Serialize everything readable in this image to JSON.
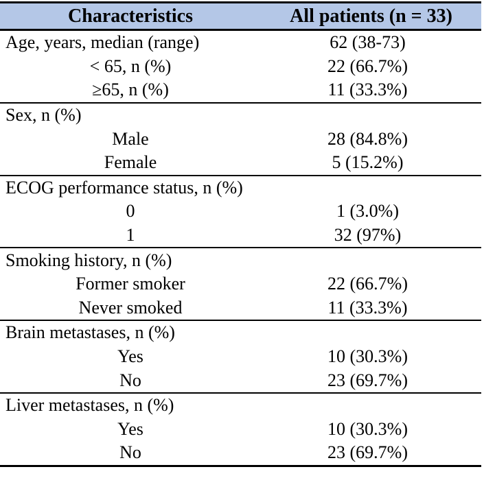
{
  "colors": {
    "header_bg": "#b4c7e7",
    "border": "#000000",
    "text": "#000000",
    "page_bg": "#ffffff"
  },
  "table": {
    "header": {
      "characteristics": "Characteristics",
      "all_patients": "All patients (n = 33)"
    },
    "sections": [
      {
        "rows": [
          {
            "label": "Age, years, median (range)",
            "value": "62 (38-73)",
            "indent": false
          },
          {
            "label": "< 65, n (%)",
            "value": "22 (66.7%)",
            "indent": true
          },
          {
            "label": "≥65, n (%)",
            "value": "11 (33.3%)",
            "indent": true
          }
        ]
      },
      {
        "rows": [
          {
            "label": "Sex, n (%)",
            "value": "",
            "indent": false
          },
          {
            "label": "Male",
            "value": "28 (84.8%)",
            "indent": true
          },
          {
            "label": "Female",
            "value": "5 (15.2%)",
            "indent": true
          }
        ]
      },
      {
        "rows": [
          {
            "label": "ECOG performance status, n (%)",
            "value": "",
            "indent": false
          },
          {
            "label": "0",
            "value": "1 (3.0%)",
            "indent": true
          },
          {
            "label": "1",
            "value": "32 (97%)",
            "indent": true
          }
        ]
      },
      {
        "rows": [
          {
            "label": "Smoking history, n (%)",
            "value": "",
            "indent": false
          },
          {
            "label": "Former smoker",
            "value": "22 (66.7%)",
            "indent": true
          },
          {
            "label": "Never smoked",
            "value": "11 (33.3%)",
            "indent": true
          }
        ]
      },
      {
        "rows": [
          {
            "label": "Brain metastases, n (%)",
            "value": "",
            "indent": false
          },
          {
            "label": "Yes",
            "value": "10 (30.3%)",
            "indent": true
          },
          {
            "label": "No",
            "value": "23 (69.7%)",
            "indent": true
          }
        ]
      },
      {
        "rows": [
          {
            "label": "Liver metastases, n (%)",
            "value": "",
            "indent": false
          },
          {
            "label": "Yes",
            "value": "10 (30.3%)",
            "indent": true
          },
          {
            "label": "No",
            "value": "23 (69.7%)",
            "indent": true
          }
        ]
      }
    ]
  }
}
